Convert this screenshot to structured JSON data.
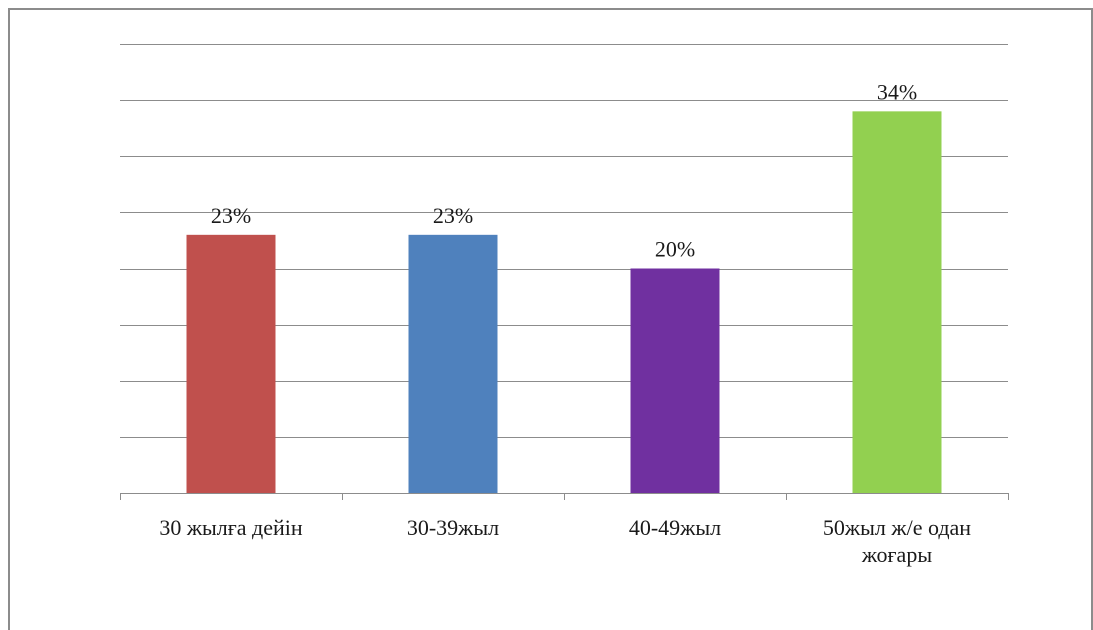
{
  "chart_data": {
    "type": "bar",
    "categories": [
      [
        "30 жылға дейін"
      ],
      [
        "30-39жыл"
      ],
      [
        "40-49жыл"
      ],
      [
        "50жыл ж/е одан",
        "жоғары"
      ]
    ],
    "values": [
      23,
      23,
      20,
      34
    ],
    "data_labels": [
      "23%",
      "23%",
      "20%",
      "34%"
    ],
    "colors": [
      "#c0504d",
      "#4f81bd",
      "#7030a0",
      "#92d050"
    ],
    "unit": "%",
    "ylim": [
      0,
      40
    ],
    "gridlines": true,
    "gridline_step": 5,
    "legend": "none"
  }
}
